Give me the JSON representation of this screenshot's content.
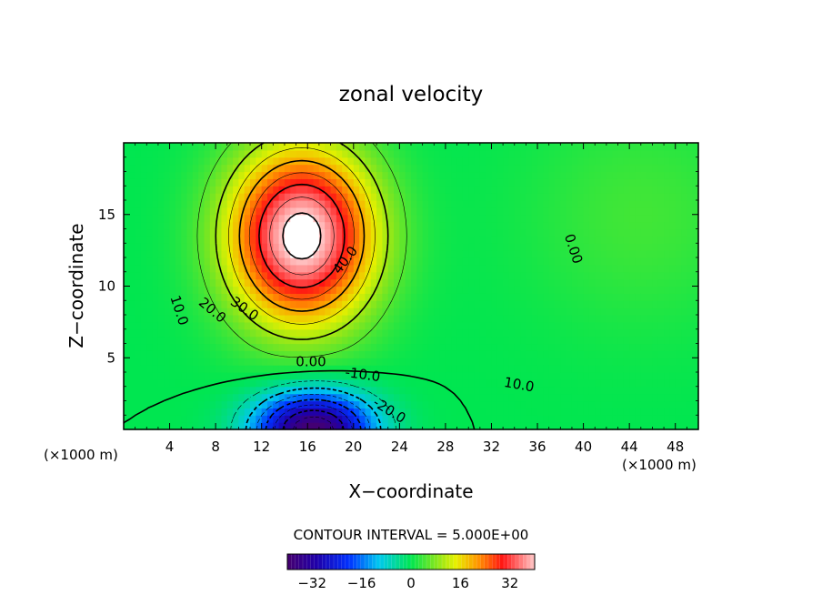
{
  "chart_data": {
    "type": "heatmap",
    "title": "zonal velocity",
    "xlabel": "X−coordinate",
    "ylabel": "Z−coordinate",
    "x_unit_left": "(×1000 m)",
    "x_unit_right": "(×1000 m)",
    "xlim": [
      0,
      50
    ],
    "ylim": [
      0,
      20
    ],
    "x_ticks": [
      4,
      8,
      12,
      16,
      20,
      24,
      28,
      32,
      36,
      40,
      44,
      48
    ],
    "x_tick_labels": [
      "4",
      "8",
      "12",
      "16",
      "20",
      "24",
      "28",
      "32",
      "36",
      "40",
      "44",
      "48"
    ],
    "y_ticks": [
      5,
      10,
      15
    ],
    "y_tick_labels": [
      "5",
      "10",
      "15"
    ],
    "contour_interval_text": "CONTOUR INTERVAL = 5.000E+00",
    "contour_labels": [
      {
        "text": "40.0",
        "x": 19.3,
        "z": 11.8,
        "rot": -52
      },
      {
        "text": "30.0",
        "x": 10.5,
        "z": 8.4,
        "rot": 35
      },
      {
        "text": "20.0",
        "x": 7.7,
        "z": 8.3,
        "rot": 40
      },
      {
        "text": "10.0",
        "x": 4.8,
        "z": 8.3,
        "rot": 72
      },
      {
        "text": "0.00",
        "x": 16.3,
        "z": 4.7,
        "rot": 0
      },
      {
        "text": "-10.0",
        "x": 20.8,
        "z": 3.8,
        "rot": 8
      },
      {
        "text": "-20.0",
        "x": 23.1,
        "z": 1.3,
        "rot": 32
      },
      {
        "text": "10.0",
        "x": 34.4,
        "z": 3.1,
        "rot": 10
      },
      {
        "text": "0.00",
        "x": 39.1,
        "z": 12.6,
        "rot": 72
      }
    ],
    "field_features": [
      {
        "name": "upper-jet",
        "x": 15.5,
        "z": 13.5,
        "amplitude": 43,
        "sigma_x": 6.2,
        "sigma_z": 6.0
      },
      {
        "name": "lower-counter-jet",
        "x": 16.5,
        "z": 0.0,
        "amplitude": -40,
        "sigma_x": 5.0,
        "sigma_z": 2.6
      },
      {
        "name": "right-background",
        "x": 45,
        "z": 15,
        "amplitude": 4,
        "sigma_x": 10,
        "sigma_z": 8
      }
    ],
    "colorbar": {
      "min": -40,
      "max": 40,
      "ticks": [
        -32,
        -16,
        0,
        16,
        32
      ],
      "tick_labels": [
        "−32",
        "−16",
        "0",
        "16",
        "32"
      ]
    }
  }
}
